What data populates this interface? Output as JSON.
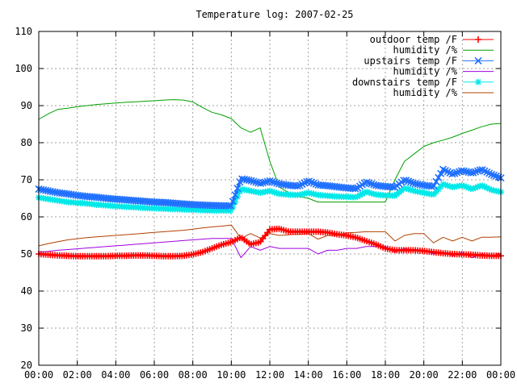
{
  "chart_data": {
    "type": "line",
    "title": "Temperature log: 2007-02-25",
    "xlabel": "",
    "ylabel": "",
    "xlim": [
      "00:00",
      "24:00"
    ],
    "ylim": [
      20,
      110
    ],
    "grid": true,
    "legend_position": "top-right",
    "x_tick_labels": [
      "00:00",
      "02:00",
      "04:00",
      "06:00",
      "08:00",
      "10:00",
      "12:00",
      "14:00",
      "16:00",
      "18:00",
      "20:00",
      "22:00",
      "00:00"
    ],
    "y_tick_labels": [
      "20",
      "30",
      "40",
      "50",
      "60",
      "70",
      "80",
      "90",
      "100",
      "110"
    ],
    "x_hours": [
      0,
      0.5,
      1,
      1.5,
      2,
      2.5,
      3,
      3.5,
      4,
      4.5,
      5,
      5.5,
      6,
      6.5,
      7,
      7.5,
      8,
      8.5,
      9,
      9.5,
      10,
      10.5,
      11,
      11.5,
      12,
      12.5,
      13,
      13.5,
      14,
      14.5,
      15,
      15.5,
      16,
      16.5,
      17,
      17.5,
      18,
      18.5,
      19,
      19.5,
      20,
      20.5,
      21,
      21.5,
      22,
      22.5,
      23,
      23.5,
      24
    ],
    "series": [
      {
        "name": "outdoor temp /F",
        "color": "#ff0000",
        "marker": "plus",
        "values": [
          50,
          49.8,
          49.6,
          49.5,
          49.4,
          49.4,
          49.4,
          49.4,
          49.5,
          49.5,
          49.6,
          49.6,
          49.5,
          49.4,
          49.4,
          49.5,
          49.9,
          50.5,
          51.5,
          52.5,
          53.2,
          54.5,
          52.6,
          53.2,
          56.6,
          56.8,
          56,
          56,
          56,
          56,
          55.8,
          55.3,
          55,
          54.4,
          53.5,
          52.6,
          51.5,
          51,
          51,
          51,
          50.8,
          50.5,
          50.2,
          50,
          49.9,
          49.8,
          49.6,
          49.5,
          49.5
        ]
      },
      {
        "name": "humidity /%",
        "color": "#00a000",
        "marker": "none",
        "values": [
          86.3,
          87.8,
          89,
          89.3,
          89.7,
          90,
          90.3,
          90.5,
          90.7,
          90.9,
          91,
          91.2,
          91.3,
          91.5,
          91.6,
          91.5,
          91,
          89.5,
          88.2,
          87.5,
          86.5,
          84,
          82.8,
          84,
          75,
          68,
          66.5,
          65.5,
          65,
          64,
          64,
          64,
          64,
          64,
          64,
          64,
          64,
          70,
          75,
          77,
          79,
          80,
          80.7,
          81.5,
          82.5,
          83.4,
          84.3,
          85,
          85.2
        ]
      },
      {
        "name": "upstairs temp /F",
        "color": "#2070ff",
        "marker": "x",
        "values": [
          67.5,
          67,
          66.5,
          66.2,
          65.8,
          65.5,
          65.3,
          65,
          64.8,
          64.6,
          64.4,
          64.2,
          64,
          63.9,
          63.7,
          63.5,
          63.3,
          63.2,
          63.1,
          63,
          63,
          70.3,
          69.8,
          69,
          69.7,
          68.9,
          68.5,
          68.3,
          69.7,
          68.6,
          68.4,
          68.1,
          67.8,
          67.6,
          69.4,
          68.5,
          68.2,
          68,
          70,
          69,
          68.5,
          68.2,
          72.8,
          71.5,
          72.5,
          71.8,
          72.8,
          71.5,
          70.5
        ]
      },
      {
        "name": "humidity /%",
        "color": "#a000e0",
        "marker": "none",
        "values": [
          50.5,
          50.7,
          51,
          51.2,
          51.4,
          51.6,
          51.8,
          52,
          52.2,
          52.4,
          52.6,
          52.8,
          53,
          53.2,
          53.4,
          53.6,
          53.8,
          54,
          54.2,
          54.2,
          54.2,
          49,
          52,
          51,
          52,
          51.5,
          51.5,
          51.5,
          51.5,
          50,
          51,
          51,
          51.5,
          51.5,
          52,
          52,
          52,
          50.5,
          51.5,
          51,
          51,
          50,
          50.5,
          49.5,
          50.5,
          49,
          50,
          49.5,
          49.5
        ]
      },
      {
        "name": "downstairs temp /F",
        "color": "#00e8e8",
        "marker": "star",
        "values": [
          65.2,
          64.8,
          64.4,
          64,
          63.8,
          63.6,
          63.3,
          63.1,
          62.9,
          62.7,
          62.6,
          62.4,
          62.3,
          62.2,
          62.1,
          62,
          61.9,
          61.8,
          61.7,
          61.7,
          61.7,
          67.5,
          67,
          66.5,
          67,
          66.2,
          66,
          65.9,
          66.5,
          65.9,
          65.7,
          65.5,
          65.4,
          65.3,
          66.8,
          66,
          65.8,
          65.7,
          67.8,
          67,
          66.5,
          66,
          68.8,
          68,
          68.5,
          67.5,
          68.5,
          67.3,
          66.7
        ]
      },
      {
        "name": "humidity /%",
        "color": "#b04000",
        "marker": "none",
        "values": [
          52.2,
          52.8,
          53.3,
          53.8,
          54.1,
          54.4,
          54.6,
          54.8,
          55,
          55.2,
          55.4,
          55.6,
          55.8,
          56,
          56.2,
          56.4,
          56.7,
          57,
          57.3,
          57.5,
          57.8,
          54.2,
          55.5,
          54.3,
          55.5,
          55,
          55.2,
          55.3,
          55.5,
          54,
          55,
          55,
          55.7,
          55.8,
          56,
          56,
          56,
          53.5,
          55,
          55.5,
          55.5,
          53,
          54.5,
          53.5,
          54.5,
          53.5,
          54.5,
          54.5,
          54.6
        ]
      }
    ]
  }
}
